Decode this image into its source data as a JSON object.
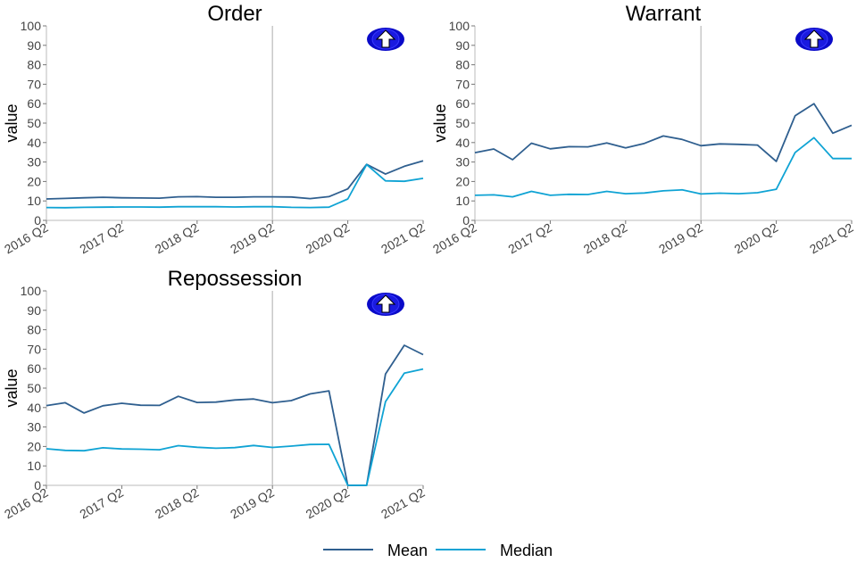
{
  "chart_data": {
    "type": "line",
    "ylabel": "value",
    "ylim": [
      0,
      100
    ],
    "yticks": [
      0,
      10,
      20,
      30,
      40,
      50,
      60,
      70,
      80,
      90,
      100
    ],
    "x": [
      "2016 Q2",
      "2016 Q3",
      "2016 Q4",
      "2017 Q1",
      "2017 Q2",
      "2017 Q3",
      "2017 Q4",
      "2018 Q1",
      "2018 Q2",
      "2018 Q3",
      "2018 Q4",
      "2019 Q1",
      "2019 Q2",
      "2019 Q3",
      "2019 Q4",
      "2020 Q1",
      "2020 Q2",
      "2020 Q3",
      "2020 Q4",
      "2021 Q1",
      "2021 Q2"
    ],
    "xticks": [
      "2016 Q2",
      "2017 Q2",
      "2018 Q2",
      "2019 Q2",
      "2020 Q2",
      "2021 Q2"
    ],
    "reference_line_x": "2019 Q2",
    "legend": {
      "position": "bottom",
      "entries": [
        "Mean",
        "Median"
      ]
    },
    "colors": {
      "Mean": "#2f5f8f",
      "Median": "#0fa3d4",
      "badge": "#0a0ac8"
    },
    "panels": [
      {
        "title": "Order",
        "icon": "up-arrow-icon",
        "series": [
          {
            "name": "Mean",
            "values": [
              11.0,
              11.3,
              11.6,
              11.9,
              11.6,
              11.5,
              11.4,
              12.1,
              12.2,
              11.9,
              11.9,
              12.1,
              12.1,
              12.0,
              11.2,
              12.2,
              16.2,
              28.8,
              23.8,
              27.8,
              30.6
            ]
          },
          {
            "name": "Median",
            "values": [
              6.6,
              6.5,
              6.7,
              6.8,
              6.9,
              6.9,
              6.8,
              7.0,
              7.0,
              7.0,
              6.9,
              7.0,
              7.0,
              6.7,
              6.6,
              6.8,
              11.0,
              28.7,
              20.3,
              20.1,
              21.6
            ]
          }
        ]
      },
      {
        "title": "Warrant",
        "icon": "up-arrow-icon",
        "series": [
          {
            "name": "Mean",
            "values": [
              34.8,
              36.7,
              31.2,
              39.7,
              36.8,
              37.9,
              37.8,
              39.8,
              37.3,
              39.6,
              43.4,
              41.6,
              38.4,
              39.3,
              39.1,
              38.7,
              30.3,
              53.8,
              60.0,
              44.8,
              48.9
            ]
          },
          {
            "name": "Median",
            "values": [
              12.9,
              13.1,
              12.1,
              14.9,
              12.9,
              13.4,
              13.3,
              14.9,
              13.7,
              14.1,
              15.2,
              15.7,
              13.6,
              14.0,
              13.7,
              14.2,
              16.0,
              34.9,
              42.5,
              31.8,
              31.8
            ]
          }
        ]
      },
      {
        "title": "Repossession",
        "icon": "up-arrow-icon",
        "series": [
          {
            "name": "Mean",
            "values": [
              41.0,
              42.5,
              37.2,
              40.9,
              42.2,
              41.2,
              41.1,
              45.8,
              42.6,
              42.8,
              43.9,
              44.4,
              42.5,
              43.6,
              47.0,
              48.6,
              0.0,
              0.0,
              57.2,
              72.0,
              67.2
            ]
          },
          {
            "name": "Median",
            "values": [
              18.8,
              18.0,
              17.8,
              19.3,
              18.7,
              18.6,
              18.3,
              20.4,
              19.6,
              19.1,
              19.4,
              20.5,
              19.5,
              20.2,
              21.0,
              21.1,
              0.0,
              0.0,
              43.0,
              57.7,
              59.8
            ]
          }
        ]
      }
    ]
  }
}
